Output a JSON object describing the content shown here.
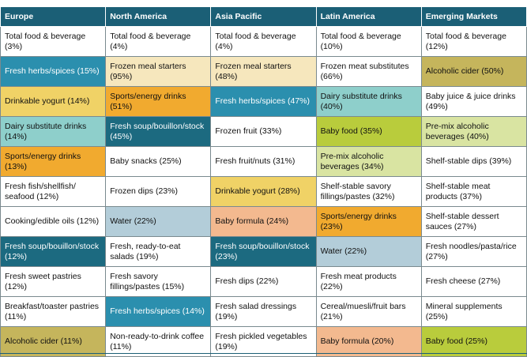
{
  "table": {
    "headers": [
      "Europe",
      "North America",
      "Asia Pacific",
      "Latin America",
      "Emerging Markets"
    ],
    "rows": [
      [
        {
          "text": "Total food & beverage (3%)",
          "color": "#ffffff"
        },
        {
          "text": "Total food & beverage (4%)",
          "color": "#ffffff"
        },
        {
          "text": "Total food & beverage (4%)",
          "color": "#ffffff"
        },
        {
          "text": "Total food & beverage (10%)",
          "color": "#ffffff"
        },
        {
          "text": "Total food & beverage (12%)",
          "color": "#ffffff"
        }
      ],
      [
        {
          "text": "Fresh herbs/spices (15%)",
          "color": "#2b8fae"
        },
        {
          "text": "Frozen meal starters (95%)",
          "color": "#f6e7bd"
        },
        {
          "text": "Frozen meal starters (48%)",
          "color": "#f6e7bd"
        },
        {
          "text": "Frozen meat substitutes (66%)",
          "color": "#ffffff"
        },
        {
          "text": "Alcoholic cider (50%)",
          "color": "#c5b55c"
        }
      ],
      [
        {
          "text": "Drinkable yogurt (14%)",
          "color": "#f0d266"
        },
        {
          "text": "Sports/energy drinks (51%)",
          "color": "#f1aa2f"
        },
        {
          "text": "Fresh herbs/spices (47%)",
          "color": "#2b8fae"
        },
        {
          "text": "Dairy substitute drinks (40%)",
          "color": "#8ecfcb"
        },
        {
          "text": "Baby juice & juice drinks (49%)",
          "color": "#ffffff"
        }
      ],
      [
        {
          "text": "Dairy substitute drinks (14%)",
          "color": "#8ecfcb"
        },
        {
          "text": "Fresh soup/bouillon/stock (45%)",
          "color": "#1c6a80"
        },
        {
          "text": "Frozen fruit (33%)",
          "color": "#ffffff"
        },
        {
          "text": "Baby food (35%)",
          "color": "#b9cc3c"
        },
        {
          "text": "Pre-mix alcoholic beverages (40%)",
          "color": "#d9e4a2"
        }
      ],
      [
        {
          "text": "Sports/energy drinks (13%)",
          "color": "#f1aa2f"
        },
        {
          "text": "Baby snacks (25%)",
          "color": "#ffffff"
        },
        {
          "text": "Fresh fruit/nuts (31%)",
          "color": "#ffffff"
        },
        {
          "text": "Pre-mix alcoholic beverages (34%)",
          "color": "#d9e4a2"
        },
        {
          "text": "Shelf-stable dips (39%)",
          "color": "#ffffff"
        }
      ],
      [
        {
          "text": "Fresh fish/shellfish/ seafood (12%)",
          "color": "#ffffff"
        },
        {
          "text": "Frozen dips (23%)",
          "color": "#ffffff"
        },
        {
          "text": "Drinkable yogurt (28%)",
          "color": "#f0d266"
        },
        {
          "text": "Shelf-stable savory fillings/pastes (32%)",
          "color": "#ffffff"
        },
        {
          "text": "Shelf-stable meat products (37%)",
          "color": "#ffffff"
        }
      ],
      [
        {
          "text": "Cooking/edible oils (12%)",
          "color": "#ffffff"
        },
        {
          "text": "Water (22%)",
          "color": "#b3cdd9"
        },
        {
          "text": "Baby formula (24%)",
          "color": "#f3b98f"
        },
        {
          "text": "Sports/energy drinks (23%)",
          "color": "#f1aa2f"
        },
        {
          "text": "Shelf-stable dessert sauces (27%)",
          "color": "#ffffff"
        }
      ],
      [
        {
          "text": "Fresh soup/bouillon/stock (12%)",
          "color": "#1c6a80"
        },
        {
          "text": "Fresh, ready-to-eat salads (19%)",
          "color": "#ffffff"
        },
        {
          "text": "Fresh soup/bouillon/stock (23%)",
          "color": "#1c6a80"
        },
        {
          "text": "Water (22%)",
          "color": "#b3cdd9"
        },
        {
          "text": "Fresh noodles/pasta/rice (27%)",
          "color": "#ffffff"
        }
      ],
      [
        {
          "text": "Fresh sweet pastries (12%)",
          "color": "#ffffff"
        },
        {
          "text": "Fresh savory fillings/pastes (15%)",
          "color": "#ffffff"
        },
        {
          "text": "Fresh dips (22%)",
          "color": "#ffffff"
        },
        {
          "text": "Fresh meat products (22%)",
          "color": "#ffffff"
        },
        {
          "text": "Fresh cheese (27%)",
          "color": "#ffffff"
        }
      ],
      [
        {
          "text": "Breakfast/toaster pastries (11%)",
          "color": "#ffffff"
        },
        {
          "text": "Fresh herbs/spices (14%)",
          "color": "#2b8fae"
        },
        {
          "text": "Fresh salad dressings (19%)",
          "color": "#ffffff"
        },
        {
          "text": "Cereal/muesli/fruit bars (21%)",
          "color": "#ffffff"
        },
        {
          "text": "Mineral supplements (25%)",
          "color": "#ffffff"
        }
      ],
      [
        {
          "text": "Alcoholic cider (11%)",
          "color": "#c5b55c"
        },
        {
          "text": "Non-ready-to-drink coffee (11%)",
          "color": "#ffffff"
        },
        {
          "text": "Fresh pickled vegetables (19%)",
          "color": "#ffffff"
        },
        {
          "text": "Baby formula (20%)",
          "color": "#f3b98f"
        },
        {
          "text": "Baby food (25%)",
          "color": "#b9cc3c"
        }
      ]
    ]
  }
}
